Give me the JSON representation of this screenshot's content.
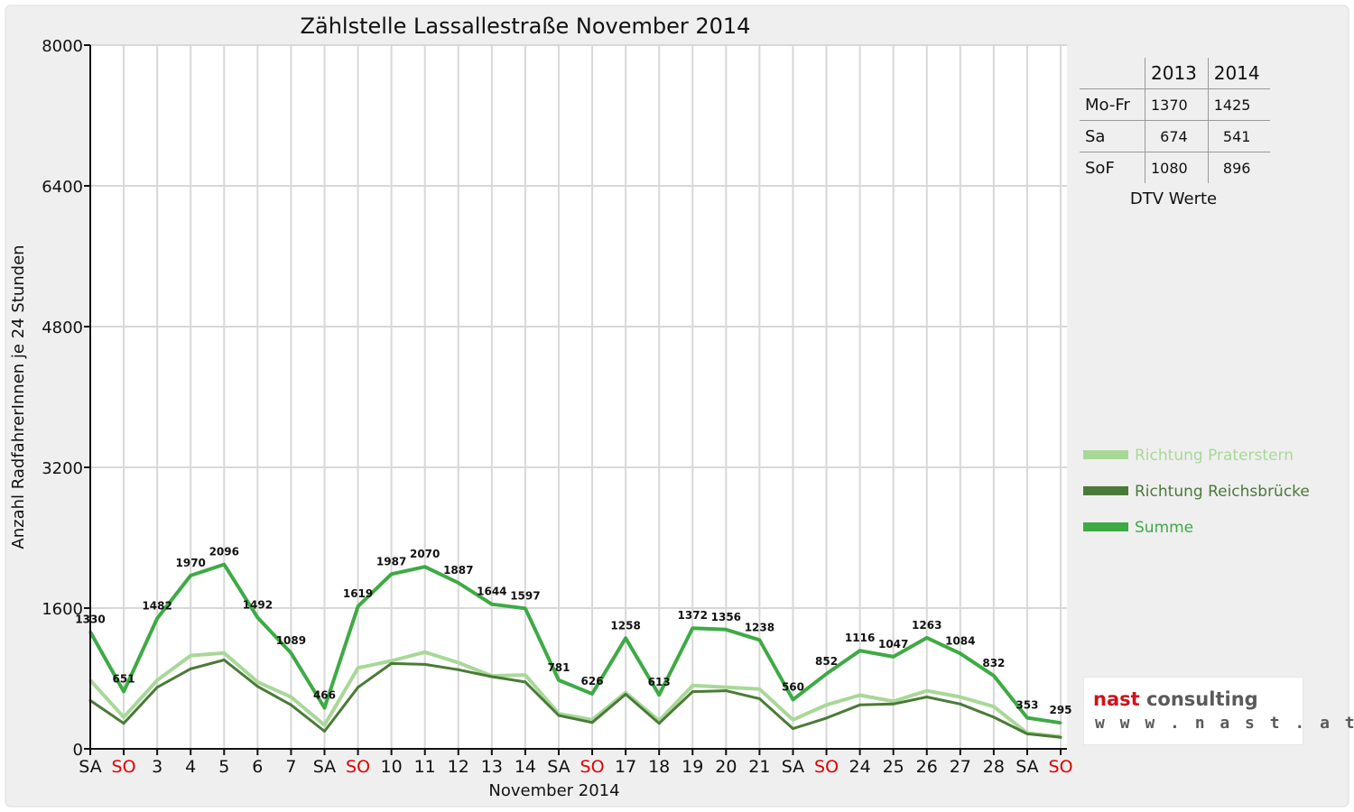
{
  "chart_data": {
    "type": "line",
    "title": "Zählstelle Lassallestraße November 2014",
    "xlabel": "November 2014",
    "ylabel": "Anzahl RadfahrerInnen je 24 Stunden",
    "ylim": [
      0,
      8000
    ],
    "yticks": [
      0,
      1600,
      3200,
      4800,
      6400,
      8000
    ],
    "grid": true,
    "legend_position": "right",
    "categories": [
      "SA",
      "SO",
      "3",
      "4",
      "5",
      "6",
      "7",
      "SA",
      "SO",
      "10",
      "11",
      "12",
      "13",
      "14",
      "SA",
      "SO",
      "17",
      "18",
      "19",
      "20",
      "21",
      "SA",
      "SO",
      "24",
      "25",
      "26",
      "27",
      "28",
      "SA",
      "SO"
    ],
    "weekend_flags": [
      false,
      true,
      false,
      false,
      false,
      false,
      false,
      false,
      true,
      false,
      false,
      false,
      false,
      false,
      false,
      true,
      false,
      false,
      false,
      false,
      false,
      false,
      true,
      false,
      false,
      false,
      false,
      false,
      false,
      true
    ],
    "series": [
      {
        "name": "Richtung Praterstern",
        "color": "#a8d898",
        "values": [
          780,
          360,
          780,
          1060,
          1090,
          760,
          590,
          270,
          920,
          1000,
          1100,
          980,
          830,
          840,
          400,
          330,
          640,
          320,
          720,
          700,
          680,
          330,
          500,
          610,
          540,
          660,
          590,
          480,
          180,
          140
        ]
      },
      {
        "name": "Richtung Reichsbrücke",
        "color": "#4a7a38",
        "values": [
          550,
          290,
          700,
          910,
          1010,
          710,
          500,
          200,
          700,
          970,
          960,
          900,
          820,
          760,
          380,
          300,
          620,
          290,
          650,
          660,
          570,
          230,
          350,
          500,
          510,
          590,
          510,
          360,
          170,
          130
        ]
      },
      {
        "name": "Summe",
        "color": "#3eaa45",
        "values": [
          1330,
          651,
          1482,
          1970,
          2096,
          1492,
          1089,
          466,
          1619,
          1987,
          2070,
          1887,
          1644,
          1597,
          781,
          626,
          1258,
          613,
          1372,
          1356,
          1238,
          560,
          852,
          1116,
          1047,
          1263,
          1084,
          832,
          353,
          295
        ]
      }
    ],
    "data_labels": [
      "1330",
      "651",
      "1482",
      "1970",
      "2096",
      "1492",
      "1089",
      "466",
      "1619",
      "1987",
      "2070",
      "1887",
      "1644",
      "1597",
      "781",
      "626",
      "1258",
      "613",
      "1372",
      "1356",
      "1238",
      "560",
      "852",
      "1116",
      "1047",
      "1263",
      "1084",
      "832",
      "353",
      "295"
    ]
  },
  "dtv_table": {
    "header": [
      "",
      "2013",
      "2014"
    ],
    "rows": [
      {
        "label": "Mo-Fr",
        "v2013": "1370",
        "v2014": "1425"
      },
      {
        "label": "Sa",
        "v2013": "674",
        "v2014": "541"
      },
      {
        "label": "SoF",
        "v2013": "1080",
        "v2014": "896"
      }
    ],
    "caption": "DTV Werte"
  },
  "logo": {
    "word1": "nast",
    "word2": "consulting",
    "url": "w w w . n a s t . a t"
  },
  "colors": {
    "weekend_tick": "#e00000",
    "frame_bg": "#efefef",
    "plot_bg": "#ffffff",
    "grid": "#d8d8d8"
  }
}
